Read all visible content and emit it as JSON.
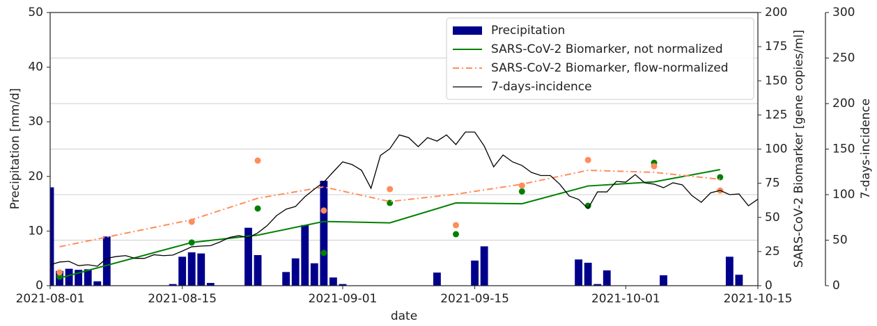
{
  "chart_data": {
    "type": "combo",
    "xlabel": "date",
    "ylabel": "Precipitation [mm/d]",
    "y2label": "SARS-CoV-2 Biomarker [gene copies/ml]",
    "y3label": "7-days-incidence",
    "xlim": [
      "2021-08-01",
      "2021-10-15"
    ],
    "xticks": [
      "2021-08-01",
      "2021-08-15",
      "2021-09-01",
      "2021-09-15",
      "2021-10-01",
      "2021-10-15"
    ],
    "ylim": [
      0,
      50
    ],
    "yticks": [
      0,
      10,
      20,
      30,
      40,
      50
    ],
    "y2lim": [
      0,
      200
    ],
    "y2ticks": [
      0,
      25,
      50,
      75,
      100,
      125,
      150,
      175,
      200
    ],
    "y3lim": [
      0,
      300
    ],
    "y3ticks": [
      0,
      50,
      100,
      150,
      200,
      250,
      300
    ],
    "grid": true,
    "grid_axis": "y3",
    "legend": "upper right",
    "series": [
      {
        "name": "Precipitation",
        "type": "bar",
        "axis": "y",
        "color": "#00008b",
        "x": [
          "2021-08-01",
          "2021-08-02",
          "2021-08-03",
          "2021-08-04",
          "2021-08-05",
          "2021-08-06",
          "2021-08-07",
          "2021-08-14",
          "2021-08-15",
          "2021-08-16",
          "2021-08-17",
          "2021-08-18",
          "2021-08-22",
          "2021-08-23",
          "2021-08-26",
          "2021-08-27",
          "2021-08-28",
          "2021-08-29",
          "2021-08-30",
          "2021-08-31",
          "2021-09-01",
          "2021-09-11",
          "2021-09-15",
          "2021-09-16",
          "2021-09-26",
          "2021-09-27",
          "2021-09-28",
          "2021-09-29",
          "2021-10-05",
          "2021-10-12",
          "2021-10-13"
        ],
        "values": [
          18,
          2.7,
          3.1,
          2.9,
          3.0,
          0.8,
          9.0,
          0.3,
          5.3,
          6.1,
          5.9,
          0.5,
          10.6,
          5.6,
          2.5,
          5.0,
          11.1,
          4.1,
          19.2,
          1.5,
          0.3,
          2.4,
          4.6,
          7.2,
          4.8,
          4.2,
          0.3,
          2.8,
          1.9,
          5.3,
          2.0
        ]
      },
      {
        "name": "SARS-CoV-2 Biomarker, not normalized",
        "type": "line",
        "style": "solid",
        "axis": "y2",
        "color": "#008000",
        "x": [
          "2021-08-02",
          "2021-08-16",
          "2021-08-23",
          "2021-08-30",
          "2021-09-06",
          "2021-09-13",
          "2021-09-20",
          "2021-09-27",
          "2021-10-04",
          "2021-10-11"
        ],
        "values": [
          5.6,
          31.6,
          37,
          47,
          46,
          60.6,
          60,
          73,
          76,
          85
        ],
        "points": [
          6.6,
          31.6,
          56.5,
          24,
          60.6,
          37.7,
          69,
          58.5,
          90,
          79.4
        ]
      },
      {
        "name": "SARS-CoV-2 Biomarker, flow-normalized",
        "type": "line",
        "style": "dashdot",
        "axis": "y2",
        "color": "#ff8c5a",
        "x": [
          "2021-08-02",
          "2021-08-16",
          "2021-08-23",
          "2021-08-30",
          "2021-09-06",
          "2021-09-13",
          "2021-09-20",
          "2021-09-27",
          "2021-10-04",
          "2021-10-11"
        ],
        "values": [
          28.5,
          48.3,
          64,
          72.3,
          61.6,
          67,
          74.3,
          84.5,
          83,
          77.9
        ],
        "points": [
          9.7,
          46.8,
          91.6,
          55,
          70.7,
          44.3,
          73.3,
          92,
          87.5,
          69.7
        ]
      },
      {
        "name": "7-days-incidence",
        "type": "line",
        "style": "thin",
        "axis": "y3",
        "color": "#000000",
        "x": [
          "2021-08-01",
          "2021-08-02",
          "2021-08-03",
          "2021-08-04",
          "2021-08-05",
          "2021-08-06",
          "2021-08-07",
          "2021-08-08",
          "2021-08-09",
          "2021-08-10",
          "2021-08-11",
          "2021-08-12",
          "2021-08-13",
          "2021-08-14",
          "2021-08-15",
          "2021-08-16",
          "2021-08-17",
          "2021-08-18",
          "2021-08-19",
          "2021-08-20",
          "2021-08-21",
          "2021-08-22",
          "2021-08-23",
          "2021-08-24",
          "2021-08-25",
          "2021-08-26",
          "2021-08-27",
          "2021-08-28",
          "2021-08-29",
          "2021-08-30",
          "2021-08-31",
          "2021-09-01",
          "2021-09-02",
          "2021-09-03",
          "2021-09-04",
          "2021-09-05",
          "2021-09-06",
          "2021-09-07",
          "2021-09-08",
          "2021-09-09",
          "2021-09-10",
          "2021-09-11",
          "2021-09-12",
          "2021-09-13",
          "2021-09-14",
          "2021-09-15",
          "2021-09-16",
          "2021-09-17",
          "2021-09-18",
          "2021-09-19",
          "2021-09-20",
          "2021-09-21",
          "2021-09-22",
          "2021-09-23",
          "2021-09-24",
          "2021-09-25",
          "2021-09-26",
          "2021-09-27",
          "2021-09-28",
          "2021-09-29",
          "2021-09-30",
          "2021-10-01",
          "2021-10-02",
          "2021-10-03",
          "2021-10-04",
          "2021-10-05",
          "2021-10-06",
          "2021-10-07",
          "2021-10-08",
          "2021-10-09",
          "2021-10-10",
          "2021-10-11",
          "2021-10-12",
          "2021-10-13",
          "2021-10-14",
          "2021-10-15"
        ],
        "values": [
          22.9,
          26,
          26.7,
          22,
          23,
          21.4,
          30,
          32,
          33,
          30,
          30,
          34,
          33,
          33.6,
          38,
          42.7,
          43.5,
          44,
          48,
          53,
          55,
          52.7,
          58,
          66,
          77,
          84,
          87,
          97.7,
          106,
          113.7,
          125,
          136,
          133,
          126.7,
          107,
          143,
          150.4,
          165.6,
          162.6,
          152.7,
          162.6,
          158.8,
          165.6,
          155,
          168.7,
          168.7,
          153.4,
          130.5,
          143.5,
          136,
          132,
          124.4,
          121,
          121,
          111.5,
          98.5,
          94.7,
          84.7,
          103,
          103,
          114.5,
          113.7,
          122,
          113,
          111.5,
          107.6,
          113,
          110.7,
          99,
          91.6,
          102,
          104.6,
          100,
          100.7,
          87.8,
          95
        ]
      }
    ]
  }
}
